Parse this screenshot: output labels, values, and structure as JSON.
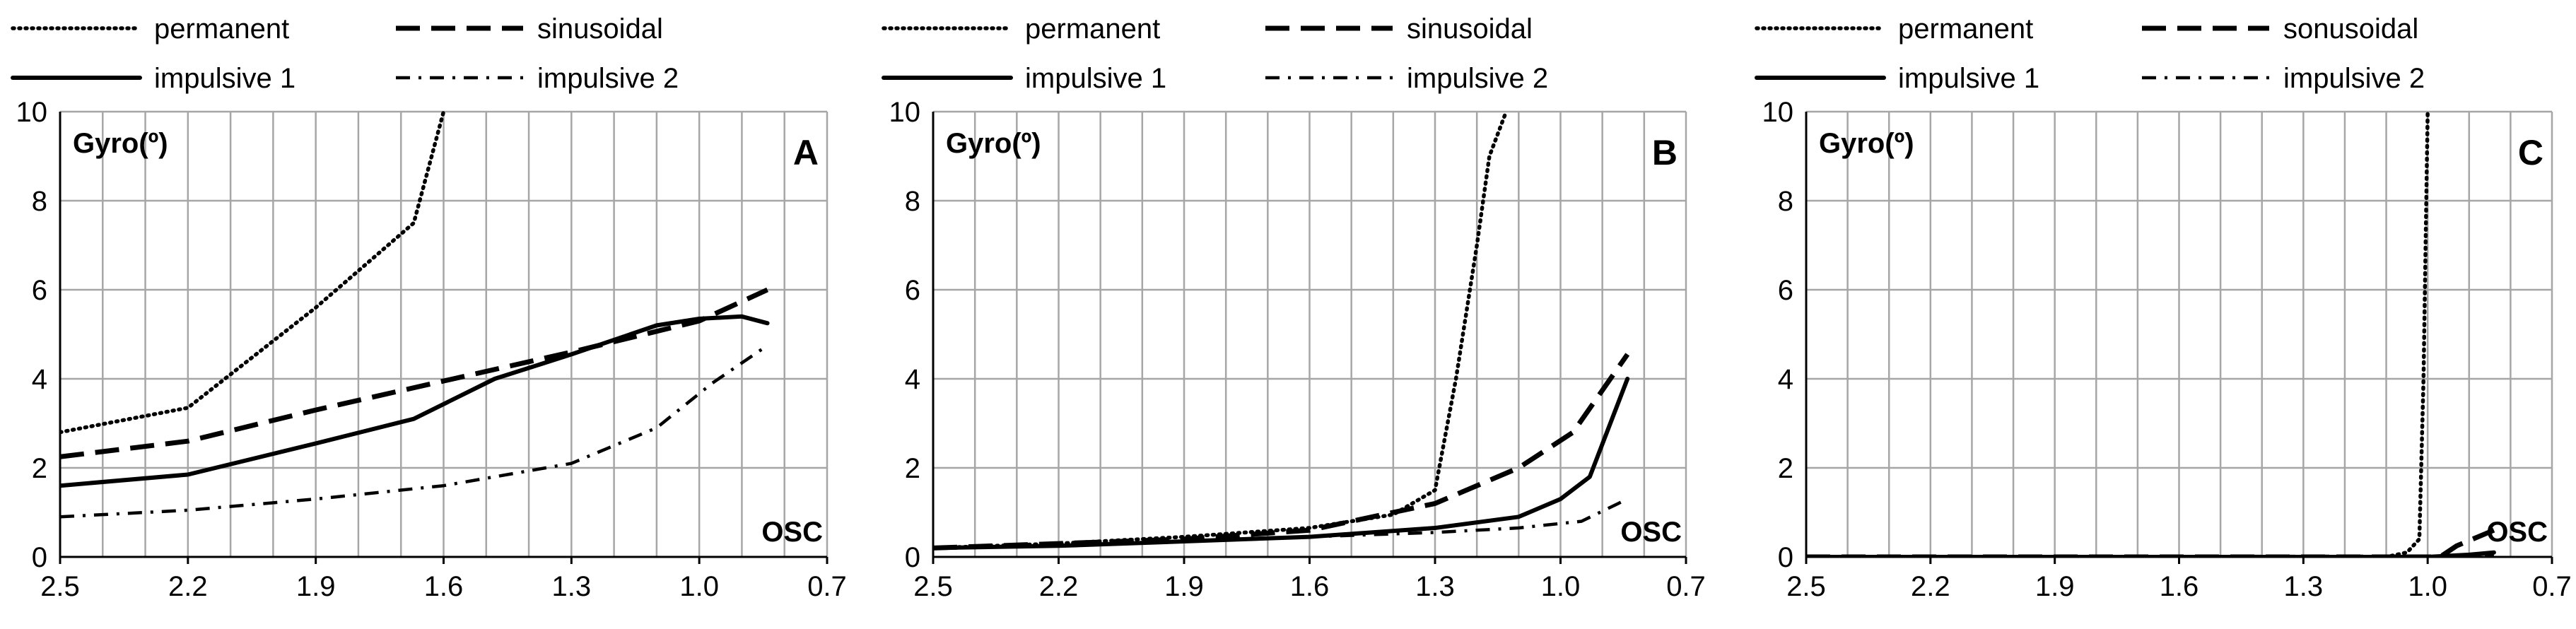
{
  "chart_data": [
    {
      "type": "line",
      "panel_label": "A",
      "ylabel": "Gyro(º)",
      "xlabel": "OSC",
      "x_ticks": [
        "2.5",
        "2.2",
        "1.9",
        "1.6",
        "1.3",
        "1.0",
        "0.7"
      ],
      "y_ticks": [
        "0",
        "2",
        "4",
        "6",
        "8",
        "10"
      ],
      "xlim": [
        2.5,
        0.7
      ],
      "ylim": [
        0,
        10
      ],
      "grid": true,
      "legend_position": "top",
      "series": [
        {
          "name": "permanent",
          "style": "dotted",
          "x": [
            2.5,
            2.2,
            1.9,
            1.67,
            1.6
          ],
          "y": [
            2.8,
            3.35,
            5.6,
            7.5,
            10
          ]
        },
        {
          "name": "sinusoidal",
          "style": "dashed",
          "x": [
            2.5,
            2.2,
            1.9,
            1.6,
            1.3,
            1.0,
            0.84
          ],
          "y": [
            2.25,
            2.6,
            3.3,
            3.95,
            4.6,
            5.3,
            6.0
          ]
        },
        {
          "name": "impulsive 1",
          "style": "solid",
          "x": [
            2.5,
            2.2,
            1.9,
            1.67,
            1.48,
            1.3,
            1.1,
            1.0,
            0.9,
            0.84
          ],
          "y": [
            1.6,
            1.85,
            2.55,
            3.1,
            4.0,
            4.55,
            5.2,
            5.35,
            5.4,
            5.25
          ]
        },
        {
          "name": "impulsive 2",
          "style": "dash-dot",
          "x": [
            2.5,
            2.2,
            1.9,
            1.6,
            1.3,
            1.1,
            0.97,
            0.84
          ],
          "y": [
            0.9,
            1.05,
            1.3,
            1.6,
            2.1,
            2.9,
            3.9,
            4.75
          ]
        }
      ]
    },
    {
      "type": "line",
      "panel_label": "B",
      "ylabel": "Gyro(º)",
      "xlabel": "OSC",
      "x_ticks": [
        "2.5",
        "2.2",
        "1.9",
        "1.6",
        "1.3",
        "1.0",
        "0.7"
      ],
      "y_ticks": [
        "0",
        "2",
        "4",
        "6",
        "8",
        "10"
      ],
      "xlim": [
        2.5,
        0.7
      ],
      "ylim": [
        0,
        10
      ],
      "grid": true,
      "legend_position": "top",
      "series": [
        {
          "name": "permanent",
          "style": "dotted",
          "x": [
            2.5,
            2.2,
            1.9,
            1.6,
            1.4,
            1.3,
            1.25,
            1.2,
            1.17,
            1.13
          ],
          "y": [
            0.2,
            0.3,
            0.45,
            0.65,
            0.95,
            1.5,
            4.0,
            7.0,
            9.0,
            10
          ]
        },
        {
          "name": "sinusoidal",
          "style": "dashed",
          "x": [
            2.5,
            2.2,
            1.9,
            1.6,
            1.3,
            1.1,
            0.97,
            0.84
          ],
          "y": [
            0.2,
            0.3,
            0.4,
            0.6,
            1.2,
            2.0,
            2.8,
            4.55
          ]
        },
        {
          "name": "impulsive 1",
          "style": "solid",
          "x": [
            2.5,
            2.2,
            1.9,
            1.6,
            1.3,
            1.1,
            1.0,
            0.93,
            0.84
          ],
          "y": [
            0.2,
            0.25,
            0.35,
            0.45,
            0.65,
            0.9,
            1.3,
            1.8,
            4.0
          ]
        },
        {
          "name": "impulsive 2",
          "style": "dash-dot",
          "x": [
            2.5,
            2.2,
            1.9,
            1.6,
            1.3,
            1.1,
            0.95,
            0.84
          ],
          "y": [
            0.2,
            0.25,
            0.35,
            0.45,
            0.55,
            0.65,
            0.8,
            1.3
          ]
        }
      ]
    },
    {
      "type": "line",
      "panel_label": "C",
      "ylabel": "Gyro(º)",
      "xlabel": "OSC",
      "x_ticks": [
        "2.5",
        "2.2",
        "1.9",
        "1.6",
        "1.3",
        "1.0",
        "0.7"
      ],
      "y_ticks": [
        "0",
        "2",
        "4",
        "6",
        "8",
        "10"
      ],
      "xlim": [
        2.5,
        0.7
      ],
      "ylim": [
        0,
        10
      ],
      "grid": true,
      "legend_position": "top",
      "series": [
        {
          "name": "permanent",
          "style": "dotted",
          "x": [
            2.5,
            1.1,
            1.05,
            1.02,
            1.01,
            1.0
          ],
          "y": [
            0,
            0,
            0.1,
            0.4,
            4.0,
            10
          ]
        },
        {
          "name": "sonusoidal",
          "style": "dashed",
          "x": [
            2.5,
            0.97,
            0.93,
            0.84
          ],
          "y": [
            0,
            0,
            0.25,
            0.6
          ]
        },
        {
          "name": "impulsive 1",
          "style": "solid",
          "x": [
            2.5,
            1.0,
            0.9,
            0.84
          ],
          "y": [
            0,
            0,
            0.05,
            0.1
          ]
        },
        {
          "name": "impulsive 2",
          "style": "dash-dot",
          "x": [
            2.5,
            0.84
          ],
          "y": [
            0,
            0.02
          ]
        }
      ]
    }
  ]
}
